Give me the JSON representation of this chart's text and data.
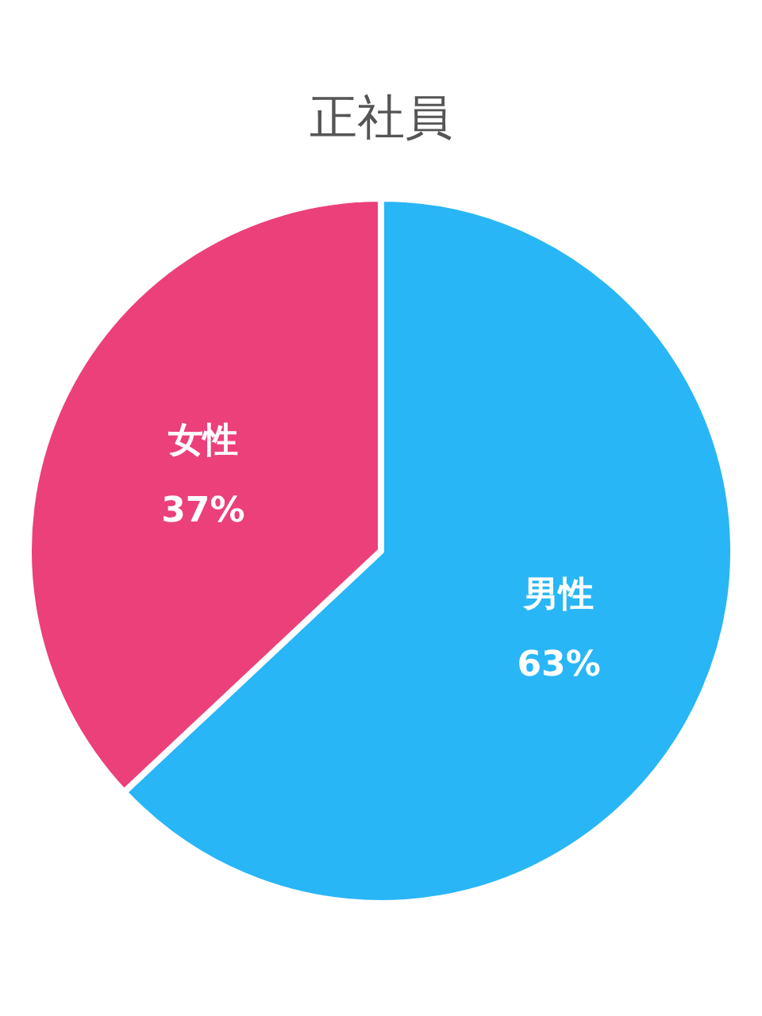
{
  "chart_data": {
    "type": "pie",
    "title": "正社員",
    "categories": [
      "男性",
      "女性"
    ],
    "values": [
      63,
      37
    ],
    "value_labels": [
      "63%",
      "37%"
    ],
    "colors": [
      "#29b6f6",
      "#ec407a"
    ]
  }
}
